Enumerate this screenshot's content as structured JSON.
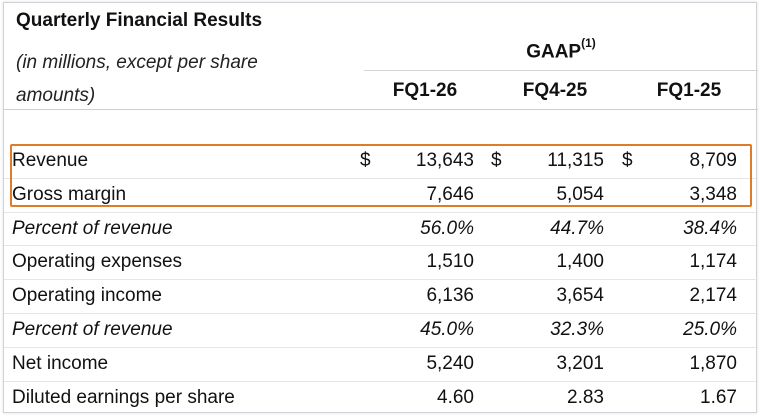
{
  "table": {
    "title": "Quarterly Financial Results",
    "subtitle_line1": "(in millions, except per share",
    "subtitle_line2": "amounts)",
    "group_header": "GAAP",
    "group_footnote": "(1)",
    "columns": [
      "FQ1-26",
      "FQ4-25",
      "FQ1-25"
    ],
    "currency_symbol": "$",
    "rows": [
      {
        "label": "Revenue",
        "values": [
          "13,643",
          "11,315",
          "8,709"
        ],
        "currency": true,
        "italic": false,
        "highlighted": true
      },
      {
        "label": "Gross margin",
        "values": [
          "7,646",
          "5,054",
          "3,348"
        ],
        "currency": false,
        "italic": false,
        "highlighted": true
      },
      {
        "label": "Percent of revenue",
        "values": [
          "56.0%",
          "44.7%",
          "38.4%"
        ],
        "currency": false,
        "italic": true,
        "highlighted": false
      },
      {
        "label": "Operating expenses",
        "values": [
          "1,510",
          "1,400",
          "1,174"
        ],
        "currency": false,
        "italic": false,
        "highlighted": false
      },
      {
        "label": "Operating income",
        "values": [
          "6,136",
          "3,654",
          "2,174"
        ],
        "currency": false,
        "italic": false,
        "highlighted": false
      },
      {
        "label": "Percent of revenue",
        "values": [
          "45.0%",
          "32.3%",
          "25.0%"
        ],
        "currency": false,
        "italic": true,
        "highlighted": false
      },
      {
        "label": "Net income",
        "values": [
          "5,240",
          "3,201",
          "1,870"
        ],
        "currency": false,
        "italic": false,
        "highlighted": false
      },
      {
        "label": "Diluted earnings per share",
        "values": [
          "4.60",
          "2.83",
          "1.67"
        ],
        "currency": false,
        "italic": false,
        "highlighted": false
      }
    ],
    "highlight_color": "#e07b2a"
  }
}
